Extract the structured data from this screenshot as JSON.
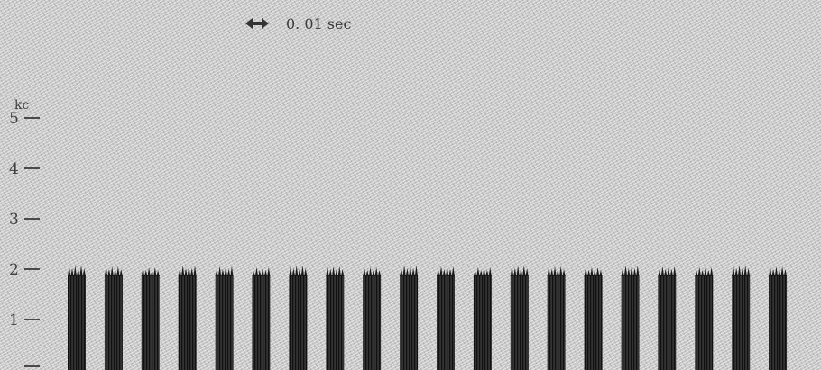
{
  "chart_data": {
    "type": "heatmap",
    "title": "",
    "ylabel": "kc",
    "y_tick_labels": [
      "1",
      "2",
      "3",
      "4",
      "5"
    ],
    "ylim": [
      0,
      5.6
    ],
    "time_scale_label": "0. 01 sec",
    "grid": false,
    "pulse_count": 20,
    "pulse_band_kc": [
      0,
      2
    ],
    "pulse_period_sec": 0.01
  }
}
